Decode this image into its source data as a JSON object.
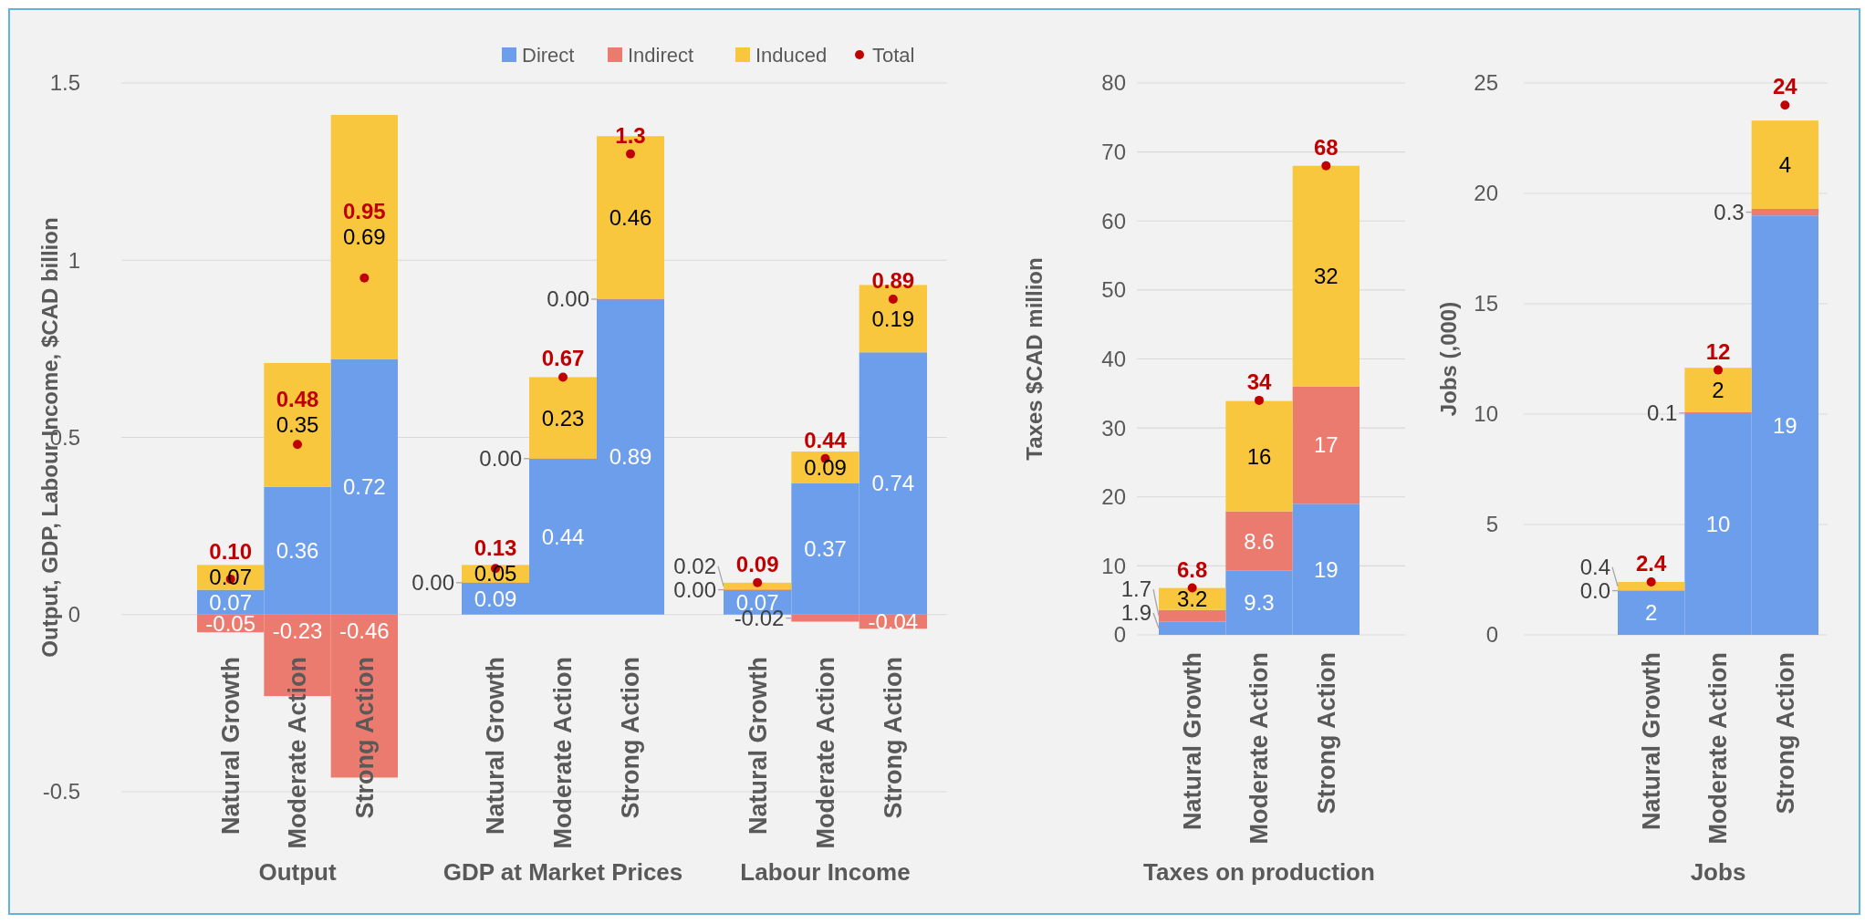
{
  "chart_data": [
    {
      "type": "bar",
      "stacked": true,
      "categories": [
        "Natural Growth",
        "Moderate Action",
        "Strong Action"
      ],
      "xlabel": "Output",
      "ylabel": "Output, GDP, Labour Income, $CAD billion",
      "ylim": [
        -0.5,
        1.5
      ],
      "yticks": [
        -0.5,
        0,
        0.5,
        1,
        1.5
      ],
      "grid": "y",
      "series": [
        {
          "color": "#6d9eeb",
          "values": [
            0.07,
            0.36,
            0.72
          ],
          "value_labels": [
            "0.07",
            "0.36",
            "0.72"
          ]
        },
        {
          "color": "#ec7b6f",
          "values": [
            -0.05,
            -0.23,
            -0.46
          ],
          "value_labels": [
            "-0.05",
            "-0.23",
            "-0.46"
          ]
        },
        {
          "color": "#f8c73e",
          "values": [
            0.07,
            0.35,
            0.69
          ],
          "value_labels": [
            "0.07",
            "0.35",
            "0.69"
          ]
        },
        {
          "type": "scatter",
          "marker": "circle",
          "color": "#c00000",
          "x": [
            "Natural Growth",
            "Moderate Action",
            "Strong Action"
          ],
          "values": [
            0.1,
            0.48,
            0.95
          ],
          "value_labels": [
            "0.10",
            "0.48",
            "0.95"
          ]
        }
      ]
    },
    {
      "type": "bar",
      "stacked": true,
      "categories": [
        "Natural Growth",
        "Moderate Action",
        "Strong Action"
      ],
      "xlabel": "GDP at Market Prices",
      "ylim": [
        -0.5,
        1.5
      ],
      "yticks": [
        -0.5,
        0,
        0.5,
        1,
        1.5
      ],
      "grid": "y",
      "tick_labels": "x",
      "legend": "top",
      "series": [
        {
          "name": "Direct",
          "color": "#6d9eeb",
          "values": [
            0.09,
            0.44,
            0.89
          ],
          "value_labels": [
            "0.09",
            "0.44",
            "0.89"
          ]
        },
        {
          "name": "Indirect",
          "color": "#ec7b6f",
          "values": [
            0.0,
            0.0,
            0.0
          ],
          "value_labels": [
            "0.00",
            "0.00",
            "0.00"
          ]
        },
        {
          "name": "Induced",
          "color": "#f8c73e",
          "values": [
            0.05,
            0.23,
            0.46
          ],
          "value_labels": [
            "0.05",
            "0.23",
            "0.46"
          ]
        },
        {
          "name": "Total",
          "type": "scatter",
          "marker": "circle",
          "color": "#c00000",
          "x": [
            "Natural Growth",
            "Moderate Action",
            "Strong Action"
          ],
          "values": [
            0.13,
            0.67,
            1.3
          ],
          "value_labels": [
            "0.13",
            "0.67",
            "1.3"
          ]
        }
      ]
    },
    {
      "type": "bar",
      "stacked": true,
      "categories": [
        "Natural Growth",
        "Moderate Action",
        "Strong Action"
      ],
      "xlabel": "Labour Income",
      "ylim": [
        -0.5,
        1.5
      ],
      "yticks": [
        -0.5,
        0,
        0.5,
        1,
        1.5
      ],
      "grid": "y",
      "tick_labels": "x",
      "series": [
        {
          "color": "#6d9eeb",
          "values": [
            0.07,
            0.37,
            0.74
          ],
          "value_labels": [
            "0.07",
            "0.37",
            "0.74"
          ]
        },
        {
          "color": "#ec7b6f",
          "values": [
            0.0,
            -0.02,
            -0.04
          ],
          "value_labels": [
            "0.00",
            "-0.02",
            "-0.04"
          ]
        },
        {
          "color": "#f8c73e",
          "values": [
            0.02,
            0.09,
            0.19
          ],
          "value_labels": [
            "0.02",
            "0.09",
            "0.19"
          ]
        },
        {
          "type": "scatter",
          "marker": "circle",
          "color": "#c00000",
          "x": [
            "Natural Growth",
            "Moderate Action",
            "Strong Action"
          ],
          "values": [
            0.09,
            0.44,
            0.89
          ],
          "value_labels": [
            "0.09",
            "0.44",
            "0.89"
          ]
        }
      ]
    },
    {
      "type": "bar",
      "stacked": true,
      "categories": [
        "Natural Growth",
        "Moderate Action",
        "Strong Action"
      ],
      "xlabel": "Taxes on production",
      "ylabel": "Taxes $CAD million",
      "ylim": [
        0,
        80
      ],
      "yticks": [
        0,
        10,
        20,
        30,
        40,
        50,
        60,
        70,
        80
      ],
      "grid": "y",
      "series": [
        {
          "color": "#6d9eeb",
          "values": [
            1.9,
            9.3,
            19
          ],
          "value_labels": [
            "1.9",
            "9.3",
            "19"
          ]
        },
        {
          "color": "#ec7b6f",
          "values": [
            1.7,
            8.6,
            17
          ],
          "value_labels": [
            "1.7",
            "8.6",
            "17"
          ]
        },
        {
          "color": "#f8c73e",
          "values": [
            3.2,
            16,
            32
          ],
          "value_labels": [
            "3.2",
            "16",
            "32"
          ]
        },
        {
          "type": "scatter",
          "marker": "circle",
          "color": "#c00000",
          "x": [
            "Natural Growth",
            "Moderate Action",
            "Strong Action"
          ],
          "values": [
            6.8,
            34,
            68
          ],
          "value_labels": [
            "6.8",
            "34",
            "68"
          ]
        }
      ]
    },
    {
      "type": "bar",
      "stacked": true,
      "categories": [
        "Natural Growth",
        "Moderate Action",
        "Strong Action"
      ],
      "xlabel": "Jobs",
      "ylabel": "Jobs (,000)",
      "ylim": [
        0,
        25
      ],
      "yticks": [
        0,
        5,
        10,
        15,
        20,
        25
      ],
      "grid": "y",
      "series": [
        {
          "color": "#6d9eeb",
          "values": [
            2,
            10,
            19
          ],
          "value_labels": [
            "2",
            "10",
            "19"
          ]
        },
        {
          "color": "#ec7b6f",
          "values": [
            0.0,
            0.1,
            0.3
          ],
          "value_labels": [
            "0.0",
            "0.1",
            "0.3"
          ]
        },
        {
          "color": "#f8c73e",
          "values": [
            0.4,
            2,
            4
          ],
          "value_labels": [
            "0.4",
            "2",
            "4"
          ]
        },
        {
          "type": "scatter",
          "marker": "circle",
          "color": "#c00000",
          "x": [
            "Natural Growth",
            "Moderate Action",
            "Strong Action"
          ],
          "values": [
            2.4,
            12,
            24
          ],
          "value_labels": [
            "2.4",
            "12",
            "24"
          ]
        }
      ]
    }
  ]
}
